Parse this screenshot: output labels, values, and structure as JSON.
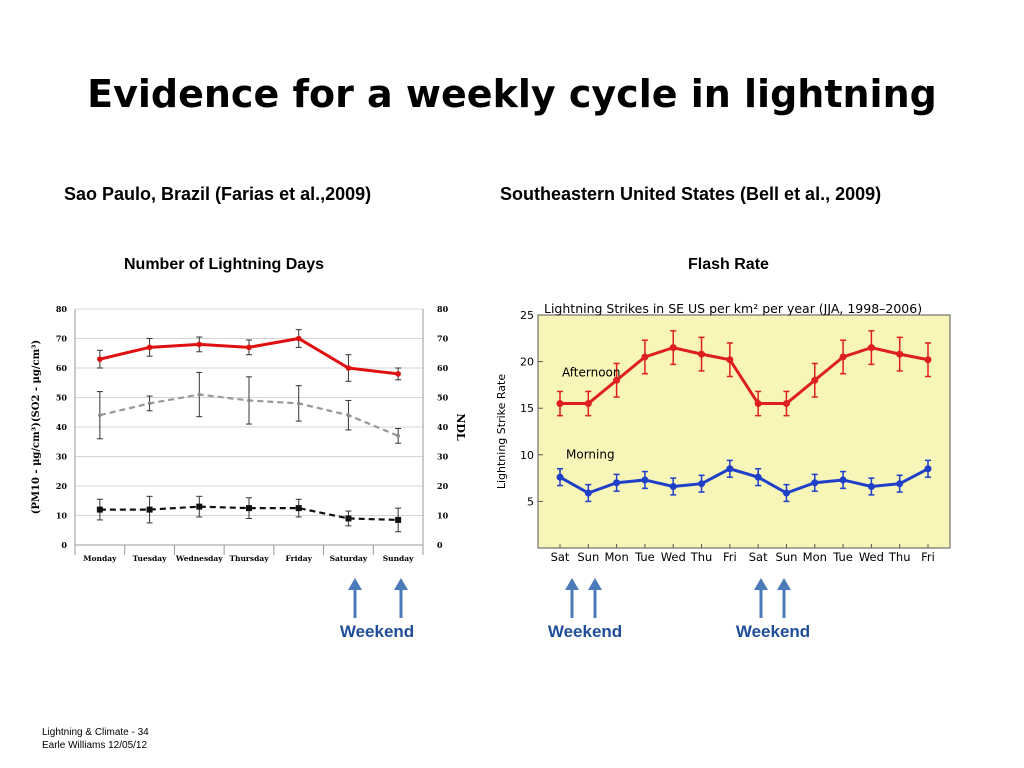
{
  "slide": {
    "title": "Evidence for a weekly cycle in lightning",
    "left_source": "Sao Paulo, Brazil (Farias et al.,2009)",
    "right_source": "Southeastern United States (Bell et al., 2009)",
    "left_subtitle": "Number of Lightning Days",
    "right_subtitle": "Flash Rate",
    "weekend_label": "Weekend",
    "footer_line1": "Lightning & Climate - 34",
    "footer_line2": "Earle Williams 12/05/12",
    "arrow_color": "#4a7ab8",
    "weekend_color": "#1f4e9a"
  },
  "chart_data": [
    {
      "type": "line",
      "categories": [
        "Monday",
        "Tuesday",
        "Wednesday",
        "Thursday",
        "Friday",
        "Saturday",
        "Sunday"
      ],
      "ylabel": "(PM10 - μg/cm³)(SO2 - μg/cm³)",
      "ylabel_right": "NDL",
      "ylim": [
        0,
        80
      ],
      "yticks": [
        0,
        10,
        20,
        30,
        40,
        50,
        60,
        70,
        80
      ],
      "grid": true,
      "series": [
        {
          "color": "#e01010",
          "style": "solid",
          "values": [
            63,
            67,
            68,
            67,
            70,
            60,
            58
          ],
          "err": [
            3,
            3,
            2.5,
            2.5,
            3,
            4.5,
            2
          ]
        },
        {
          "color": "#999999",
          "style": "dashed",
          "values": [
            44,
            48,
            51,
            49,
            48,
            44,
            37
          ],
          "err": [
            8,
            2.5,
            7.5,
            8,
            6,
            5,
            2.5
          ]
        },
        {
          "color": "#111111",
          "style": "dashed",
          "values": [
            12,
            12,
            13,
            12.5,
            12.5,
            9,
            8.5
          ],
          "err": [
            3.5,
            4.5,
            3.5,
            3.5,
            3,
            2.5,
            4
          ]
        }
      ]
    },
    {
      "type": "line",
      "title": "Lightning Strikes in SE US per km² per year (JJA, 1998–2006)",
      "categories": [
        "Sat",
        "Sun",
        "Mon",
        "Tue",
        "Wed",
        "Thu",
        "Fri",
        "Sat",
        "Sun",
        "Mon",
        "Tue",
        "Wed",
        "Thu",
        "Fri"
      ],
      "ylabel": "Lightning Strike Rate",
      "ylim": [
        0,
        25
      ],
      "yticks": [
        5,
        10,
        15,
        20,
        25
      ],
      "background": "#f7f5b8",
      "series": [
        {
          "name": "Afternoon",
          "color": "#dd1f1f",
          "values": [
            15.5,
            15.5,
            18,
            20.5,
            21.5,
            20.8,
            20.2,
            15.5,
            15.5,
            18,
            20.5,
            21.5,
            20.8,
            20.2
          ],
          "err": [
            1.3,
            1.3,
            1.8,
            1.8,
            1.8,
            1.8,
            1.8,
            1.3,
            1.3,
            1.8,
            1.8,
            1.8,
            1.8,
            1.8
          ]
        },
        {
          "name": "Morning",
          "color": "#1f3fc8",
          "values": [
            7.6,
            5.9,
            7,
            7.3,
            6.6,
            6.9,
            8.5,
            7.6,
            5.9,
            7,
            7.3,
            6.6,
            6.9,
            8.5
          ],
          "err": [
            0.9,
            0.9,
            0.9,
            0.9,
            0.9,
            0.9,
            0.9,
            0.9,
            0.9,
            0.9,
            0.9,
            0.9,
            0.9,
            0.9
          ]
        }
      ]
    }
  ]
}
